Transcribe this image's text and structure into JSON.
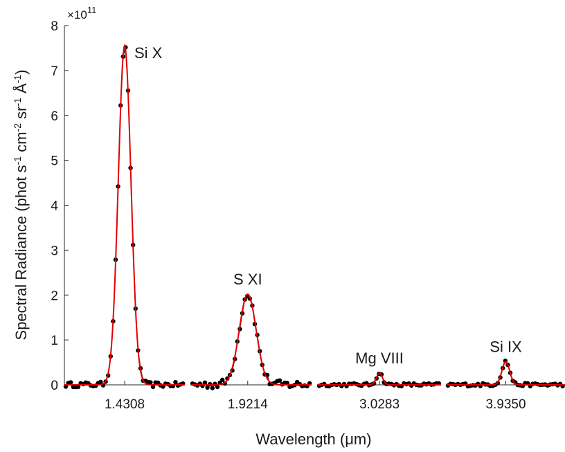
{
  "chart_data": {
    "type": "line",
    "title": "",
    "xlabel": "Wavelength (μm)",
    "ylabel": {
      "parts": [
        {
          "text": "Spectral Radiance (phot s"
        },
        {
          "text": "-1",
          "sup": true
        },
        {
          "text": " cm"
        },
        {
          "text": "-2",
          "sup": true
        },
        {
          "text": " sr"
        },
        {
          "text": "-1",
          "sup": true
        },
        {
          "text": " Å"
        },
        {
          "text": "-1",
          "sup": true
        },
        {
          "text": ")"
        }
      ]
    },
    "y_exponent": {
      "prefix": "×10",
      "power": "11"
    },
    "ylim": [
      0,
      8
    ],
    "yticks": [
      "0",
      "1",
      "2",
      "3",
      "4",
      "5",
      "6",
      "7",
      "8"
    ],
    "grid": false,
    "panels": [
      {
        "name": "Si X",
        "x_tick": "1.4308",
        "peak": 7.55,
        "data_peak_scale": 1.0,
        "noise": 0.055,
        "width": 0.105,
        "center_frac": 0.5
      },
      {
        "name": "S XI",
        "x_tick": "1.9214",
        "peak": 2.02,
        "data_peak_scale": 1.0,
        "noise": 0.09,
        "width": 0.14,
        "center_frac": 0.47
      },
      {
        "name": "Mg VIII",
        "x_tick": "3.0283",
        "peak": 0.26,
        "data_peak_scale": 1.0,
        "noise": 0.035,
        "width": 0.05,
        "center_frac": 0.5
      },
      {
        "name": "Si IX",
        "x_tick": "3.9350",
        "peak": 0.52,
        "data_peak_scale": 1.0,
        "noise": 0.035,
        "width": 0.065,
        "center_frac": 0.5
      }
    ],
    "series": [
      {
        "name": "",
        "style": "points",
        "color": "#000000"
      },
      {
        "name": "",
        "style": "fit",
        "color": "#e00000"
      }
    ]
  }
}
